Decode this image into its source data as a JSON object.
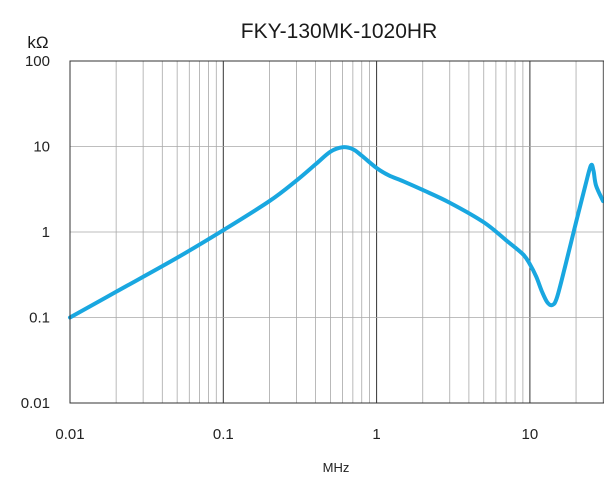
{
  "chart_data": {
    "type": "line",
    "title": "FKY-130MK-1020HR",
    "ylabel": "kΩ",
    "xlabel": "MHz",
    "x_scale": "log",
    "y_scale": "log",
    "xlim": [
      0.01,
      30
    ],
    "ylim": [
      0.01,
      100
    ],
    "x_ticks": [
      {
        "value": 0.01,
        "label": "0.01"
      },
      {
        "value": 0.1,
        "label": "0.1"
      },
      {
        "value": 1,
        "label": "1"
      },
      {
        "value": 10,
        "label": "10"
      }
    ],
    "y_ticks": [
      {
        "value": 100,
        "label": "100"
      },
      {
        "value": 10,
        "label": "10"
      },
      {
        "value": 1,
        "label": "1"
      },
      {
        "value": 0.1,
        "label": "0.1"
      },
      {
        "value": 0.01,
        "label": "0.01"
      }
    ],
    "grid": true,
    "colors": {
      "line": "#19a7e0",
      "grid": "#a8a8a8",
      "axis": "#333333"
    },
    "series": [
      {
        "x": [
          0.01,
          0.02,
          0.05,
          0.1,
          0.2,
          0.3,
          0.4,
          0.5,
          0.6,
          0.7,
          0.8,
          1.0,
          1.2,
          1.5,
          2,
          3,
          5,
          7,
          9,
          10,
          11,
          12,
          13,
          14,
          15,
          17,
          20,
          23,
          25,
          26,
          27,
          30
        ],
        "y": [
          0.1,
          0.2,
          0.5,
          1.05,
          2.3,
          4.0,
          6.2,
          8.7,
          9.8,
          9.3,
          7.8,
          5.6,
          4.6,
          3.9,
          3.1,
          2.2,
          1.3,
          0.8,
          0.55,
          0.42,
          0.3,
          0.2,
          0.15,
          0.14,
          0.17,
          0.4,
          1.3,
          3.5,
          6.0,
          5.2,
          3.5,
          2.3
        ]
      }
    ]
  }
}
